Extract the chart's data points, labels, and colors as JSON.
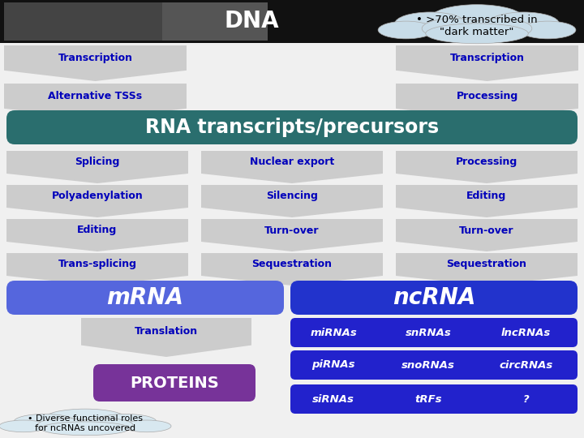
{
  "background_color": "#f0f0f0",
  "dna_text": "DNA",
  "dna_text_color": "#ffffff",
  "cloud_text": "• >70% transcribed in\n\"dark matter\"",
  "cloud_bg": "#c8dce8",
  "transcription_arrows_left": [
    "Transcription",
    "Alternative TSSs"
  ],
  "transcription_arrows_right": [
    "Transcription",
    "Processing"
  ],
  "rna_bar_color": "#2a6e6e",
  "rna_text": "RNA transcripts/precursors",
  "rna_text_color": "#ffffff",
  "col1_items": [
    "Splicing",
    "Polyadenylation",
    "Editing",
    "Trans-splicing"
  ],
  "col2_items": [
    "Nuclear export",
    "Silencing",
    "Turn-over",
    "Sequestration"
  ],
  "col3_items": [
    "Processing",
    "Editing",
    "Turn-over",
    "Sequestration"
  ],
  "arrow_color": "#cccccc",
  "arrow_text_color": "#0000bb",
  "mrna_color": "#5566dd",
  "mrna_text": "mRNA",
  "ncrna_color": "#2233cc",
  "ncrna_text": "ncRNA",
  "translation_text": "Translation",
  "proteins_color": "#773399",
  "proteins_text": "PROTEINS",
  "ncrna_items_row1": [
    "miRNAs",
    "snRNAs",
    "lncRNAs"
  ],
  "ncrna_items_row2": [
    "piRNAs",
    "snoRNAs",
    "circRNAs"
  ],
  "ncrna_items_row3": [
    "siRNAs",
    "tRFs",
    "?"
  ],
  "ncrna_items_bg": "#2222cc",
  "cloud_bottom_text": "• Diverse functional roles\nfor ncRNAs uncovered",
  "cloud_bottom_bg": "#d8e8f0",
  "dna_black": "#111111",
  "dna_gray": "#444444"
}
